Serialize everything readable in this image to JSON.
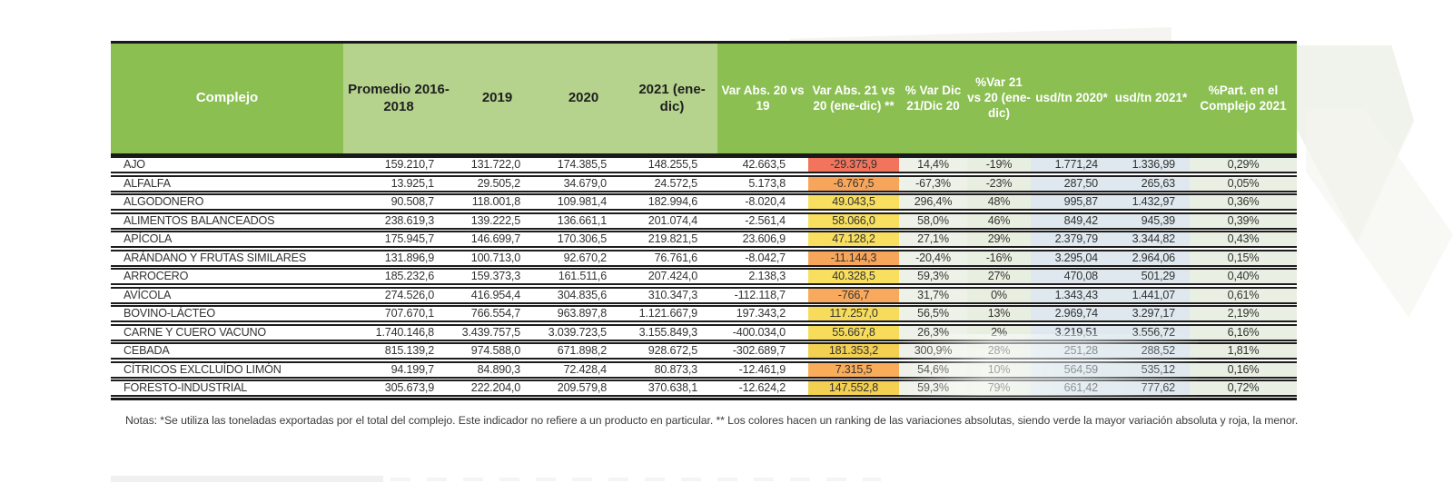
{
  "notes": "Notas: *Se utiliza las toneladas exportadas por el total del complejo. Este indicador no refiere a un producto en particular. ** Los colores hacen un ranking de las variaciones absolutas, siendo verde la mayor variación absoluta y roja, la menor.",
  "colors": {
    "header_green": "#8bbf52",
    "header_light_green": "#b6d38e",
    "tint_pct_var_dic": "#eef1e8",
    "tint_pct_var_21": "#e9efe0",
    "tint_usd": "#dee8ee",
    "tint_part": "#e9efe3",
    "rank_red": "#f2745c",
    "rank_orange": "#f8a55c",
    "rank_yellow": "#f8df5f",
    "rank_gold": "#f3cf52"
  },
  "table": {
    "columns": [
      {
        "key": "complejo",
        "label": "Complejo"
      },
      {
        "key": "promedio_2016_2018",
        "label": "Promedio 2016-2018"
      },
      {
        "key": "y2019",
        "label": "2019"
      },
      {
        "key": "y2020",
        "label": "2020"
      },
      {
        "key": "y2021",
        "label": "2021 (ene-dic)"
      },
      {
        "key": "var_abs_20_19",
        "label": "Var Abs. 20 vs 19"
      },
      {
        "key": "var_abs_21_20",
        "label": "Var Abs. 21 vs 20 (ene-dic) **"
      },
      {
        "key": "pct_var_dic",
        "label": "% Var Dic 21/Dic 20"
      },
      {
        "key": "pct_var_21_20",
        "label": "%Var 21 vs 20 (ene-dic)"
      },
      {
        "key": "usd_tn_2020",
        "label": "usd/tn 2020*"
      },
      {
        "key": "usd_tn_2021",
        "label": "usd/tn 2021*"
      },
      {
        "key": "pct_part",
        "label": "%Part. en el Complejo 2021"
      }
    ],
    "rows": [
      {
        "complejo": "AJO",
        "promedio_2016_2018": "159.210,7",
        "y2019": "131.722,0",
        "y2020": "174.385,5",
        "y2021": "148.255,5",
        "var_abs_20_19": "42.663,5",
        "var_abs_21_20": "-29.375,9",
        "rank_color": "#f2745c",
        "pct_var_dic": "14,4%",
        "pct_var_21_20": "-19%",
        "usd_tn_2020": "1.771,24",
        "usd_tn_2021": "1.336,99",
        "pct_part": "0,29%"
      },
      {
        "complejo": "ALFALFA",
        "promedio_2016_2018": "13.925,1",
        "y2019": "29.505,2",
        "y2020": "34.679,0",
        "y2021": "24.572,5",
        "var_abs_20_19": "5.173,8",
        "var_abs_21_20": "-6.767,5",
        "rank_color": "#f8a55c",
        "pct_var_dic": "-67,3%",
        "pct_var_21_20": "-23%",
        "usd_tn_2020": "287,50",
        "usd_tn_2021": "265,63",
        "pct_part": "0,05%"
      },
      {
        "complejo": "ALGODONERO",
        "promedio_2016_2018": "90.508,7",
        "y2019": "118.001,8",
        "y2020": "109.981,4",
        "y2021": "182.994,6",
        "var_abs_20_19": "-8.020,4",
        "var_abs_21_20": "49.043,5",
        "rank_color": "#f8df5f",
        "pct_var_dic": "296,4%",
        "pct_var_21_20": "48%",
        "usd_tn_2020": "995,87",
        "usd_tn_2021": "1.432,97",
        "pct_part": "0,36%"
      },
      {
        "complejo": "ALIMENTOS BALANCEADOS",
        "promedio_2016_2018": "238.619,3",
        "y2019": "139.222,5",
        "y2020": "136.661,1",
        "y2021": "201.074,4",
        "var_abs_20_19": "-2.561,4",
        "var_abs_21_20": "58.066,0",
        "rank_color": "#f8df5f",
        "pct_var_dic": "58,0%",
        "pct_var_21_20": "46%",
        "usd_tn_2020": "849,42",
        "usd_tn_2021": "945,39",
        "pct_part": "0,39%"
      },
      {
        "complejo": "APÍCOLA",
        "promedio_2016_2018": "175.945,7",
        "y2019": "146.699,7",
        "y2020": "170.306,5",
        "y2021": "219.821,5",
        "var_abs_20_19": "23.606,9",
        "var_abs_21_20": "47.128,2",
        "rank_color": "#f8df5f",
        "pct_var_dic": "27,1%",
        "pct_var_21_20": "29%",
        "usd_tn_2020": "2.379,79",
        "usd_tn_2021": "3.344,82",
        "pct_part": "0,43%"
      },
      {
        "complejo": "ARÁNDANO Y FRUTAS SIMILARES",
        "promedio_2016_2018": "131.896,9",
        "y2019": "100.713,0",
        "y2020": "92.670,2",
        "y2021": "76.761,6",
        "var_abs_20_19": "-8.042,7",
        "var_abs_21_20": "-11.144,3",
        "rank_color": "#f8a55c",
        "pct_var_dic": "-20,4%",
        "pct_var_21_20": "-16%",
        "usd_tn_2020": "3.295,04",
        "usd_tn_2021": "2.964,06",
        "pct_part": "0,15%"
      },
      {
        "complejo": "ARROCERO",
        "promedio_2016_2018": "185.232,6",
        "y2019": "159.373,3",
        "y2020": "161.511,6",
        "y2021": "207.424,0",
        "var_abs_20_19": "2.138,3",
        "var_abs_21_20": "40.328,5",
        "rank_color": "#f8df5f",
        "pct_var_dic": "59,3%",
        "pct_var_21_20": "27%",
        "usd_tn_2020": "470,08",
        "usd_tn_2021": "501,29",
        "pct_part": "0,40%"
      },
      {
        "complejo": "AVÍCOLA",
        "promedio_2016_2018": "274.526,0",
        "y2019": "416.954,4",
        "y2020": "304.835,6",
        "y2021": "310.347,3",
        "var_abs_20_19": "-112.118,7",
        "var_abs_21_20": "-766,7",
        "rank_color": "#f9a95e",
        "pct_var_dic": "31,7%",
        "pct_var_21_20": "0%",
        "usd_tn_2020": "1.343,43",
        "usd_tn_2021": "1.441,07",
        "pct_part": "0,61%"
      },
      {
        "complejo": "BOVINO-LÁCTEO",
        "promedio_2016_2018": "707.670,1",
        "y2019": "766.554,7",
        "y2020": "963.897,8",
        "y2021": "1.121.667,9",
        "var_abs_20_19": "197.343,2",
        "var_abs_21_20": "117.257,0",
        "rank_color": "#f7dc5c",
        "pct_var_dic": "56,5%",
        "pct_var_21_20": "13%",
        "usd_tn_2020": "2.969,74",
        "usd_tn_2021": "3.297,17",
        "pct_part": "2,19%"
      },
      {
        "complejo": "CARNE Y CUERO VACUNO",
        "promedio_2016_2018": "1.740.146,8",
        "y2019": "3.439.757,5",
        "y2020": "3.039.723,5",
        "y2021": "3.155.849,3",
        "var_abs_20_19": "-400.034,0",
        "var_abs_21_20": "55.667,8",
        "rank_color": "#f7dc5c",
        "pct_var_dic": "26,3%",
        "pct_var_21_20": "2%",
        "usd_tn_2020": "3.219,51",
        "usd_tn_2021": "3.556,72",
        "pct_part": "6,16%"
      },
      {
        "complejo": "CEBADA",
        "promedio_2016_2018": "815.139,2",
        "y2019": "974.588,0",
        "y2020": "671.898,2",
        "y2021": "928.672,5",
        "var_abs_20_19": "-302.689,7",
        "var_abs_21_20": "181.353,2",
        "rank_color": "#f3cf52",
        "pct_var_dic": "300,9%",
        "pct_var_21_20": "28%",
        "usd_tn_2020": "251,28",
        "usd_tn_2021": "288,52",
        "pct_part": "1,81%"
      },
      {
        "complejo": "CÍTRICOS EXLCLUÍDO LIMÓN",
        "promedio_2016_2018": "94.199,7",
        "y2019": "84.890,3",
        "y2020": "72.428,4",
        "y2021": "80.873,3",
        "var_abs_20_19": "-12.461,9",
        "var_abs_21_20": "7.315,5",
        "rank_color": "#f9ac5a",
        "pct_var_dic": "54,6%",
        "pct_var_21_20": "10%",
        "usd_tn_2020": "564,59",
        "usd_tn_2021": "535,12",
        "pct_part": "0,16%"
      },
      {
        "complejo": "FORESTO-INDUSTRIAL",
        "promedio_2016_2018": "305.673,9",
        "y2019": "222.204,0",
        "y2020": "209.579,8",
        "y2021": "370.638,1",
        "var_abs_20_19": "-12.624,2",
        "var_abs_21_20": "147.552,8",
        "rank_color": "#f3cf52",
        "pct_var_dic": "59,3%",
        "pct_var_21_20": "79%",
        "usd_tn_2020": "661,42",
        "usd_tn_2021": "777,62",
        "pct_part": "0,72%"
      }
    ]
  }
}
